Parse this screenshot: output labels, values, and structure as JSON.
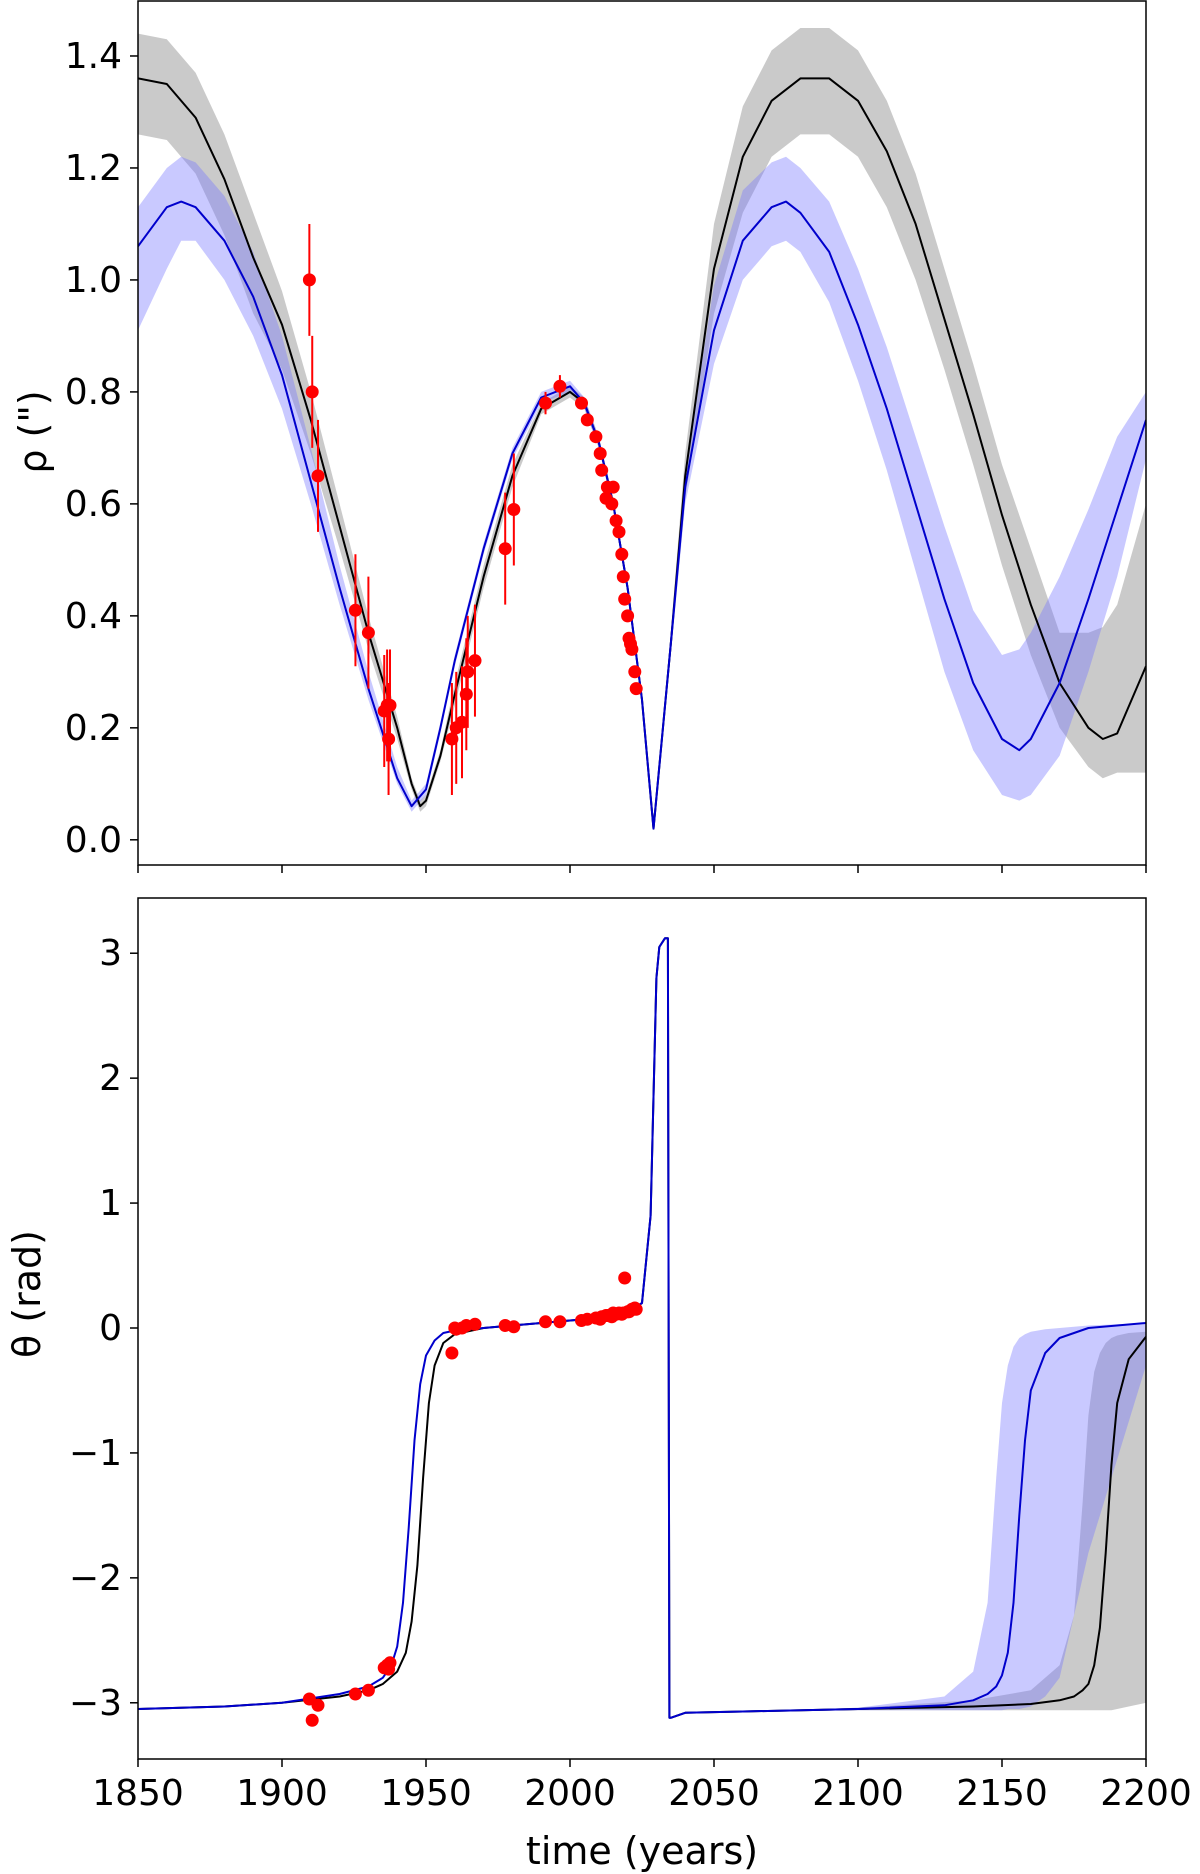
{
  "chart_data": [
    {
      "type": "line",
      "title": "",
      "xlabel": "",
      "ylabel": "ρ (\")",
      "xlim": [
        1850,
        2200
      ],
      "ylim": [
        -0.045,
        1.5
      ],
      "yticks": [
        "0.0",
        "0.2",
        "0.4",
        "0.6",
        "0.8",
        "1.0",
        "1.2",
        "1.4"
      ],
      "ytick_values": [
        0.0,
        0.2,
        0.4,
        0.6,
        0.8,
        1.0,
        1.2,
        1.4
      ],
      "xticks_unlabeled": [
        1850,
        1900,
        1950,
        2000,
        2050,
        2100,
        2150,
        2200
      ],
      "grid": false,
      "colors": {
        "black_model": "#000000",
        "blue_model": "#0000cc",
        "blue_band": "#c8c8f8",
        "gray_band": "#c8c8c8",
        "observations": "#ff0000"
      },
      "series": [
        {
          "color": "black",
          "x": [
            1850,
            1860,
            1870,
            1880,
            1890,
            1900,
            1910,
            1920,
            1930,
            1940,
            1945,
            1948,
            1950,
            1955,
            1960,
            1970,
            1980,
            1990,
            2000,
            2005,
            2010,
            2015,
            2020,
            2025,
            2029,
            2035,
            2040,
            2050,
            2060,
            2070,
            2080,
            2090,
            2100,
            2110,
            2120,
            2130,
            2140,
            2150,
            2160,
            2170,
            2180,
            2185,
            2190,
            2200
          ],
          "y": [
            1.36,
            1.35,
            1.29,
            1.18,
            1.04,
            0.92,
            0.75,
            0.56,
            0.37,
            0.2,
            0.1,
            0.06,
            0.07,
            0.15,
            0.26,
            0.47,
            0.65,
            0.77,
            0.8,
            0.78,
            0.71,
            0.6,
            0.45,
            0.25,
            0.02,
            0.35,
            0.65,
            1.02,
            1.22,
            1.32,
            1.36,
            1.36,
            1.32,
            1.23,
            1.1,
            0.93,
            0.76,
            0.58,
            0.42,
            0.28,
            0.2,
            0.18,
            0.19,
            0.31
          ],
          "band_lower": [
            1.26,
            1.25,
            1.19,
            1.08,
            0.94,
            0.84,
            0.69,
            0.52,
            0.34,
            0.18,
            0.09,
            0.05,
            0.06,
            0.14,
            0.24,
            0.45,
            0.63,
            0.76,
            0.79,
            0.77,
            0.7,
            0.59,
            0.44,
            0.24,
            0.02,
            0.33,
            0.61,
            0.94,
            1.12,
            1.22,
            1.26,
            1.26,
            1.22,
            1.13,
            1.0,
            0.84,
            0.67,
            0.49,
            0.33,
            0.2,
            0.13,
            0.11,
            0.12,
            0.12
          ],
          "band_upper": [
            1.44,
            1.43,
            1.37,
            1.26,
            1.12,
            0.98,
            0.8,
            0.6,
            0.4,
            0.22,
            0.11,
            0.07,
            0.08,
            0.16,
            0.28,
            0.49,
            0.67,
            0.78,
            0.81,
            0.79,
            0.72,
            0.61,
            0.46,
            0.26,
            0.03,
            0.37,
            0.69,
            1.1,
            1.31,
            1.41,
            1.45,
            1.45,
            1.41,
            1.32,
            1.19,
            1.02,
            0.85,
            0.67,
            0.52,
            0.37,
            0.37,
            0.38,
            0.42,
            0.6
          ]
        },
        {
          "color": "blue",
          "x": [
            1850,
            1860,
            1865,
            1870,
            1880,
            1890,
            1900,
            1910,
            1920,
            1930,
            1940,
            1945,
            1950,
            1955,
            1960,
            1970,
            1980,
            1990,
            2000,
            2005,
            2010,
            2015,
            2020,
            2025,
            2029,
            2035,
            2040,
            2050,
            2060,
            2070,
            2075,
            2080,
            2090,
            2100,
            2110,
            2120,
            2130,
            2140,
            2150,
            2156,
            2160,
            2170,
            2180,
            2190,
            2200
          ],
          "y": [
            1.06,
            1.13,
            1.14,
            1.13,
            1.07,
            0.97,
            0.83,
            0.64,
            0.45,
            0.27,
            0.11,
            0.06,
            0.09,
            0.2,
            0.32,
            0.52,
            0.69,
            0.79,
            0.81,
            0.78,
            0.71,
            0.6,
            0.45,
            0.25,
            0.02,
            0.35,
            0.63,
            0.91,
            1.07,
            1.13,
            1.14,
            1.12,
            1.05,
            0.92,
            0.77,
            0.6,
            0.43,
            0.28,
            0.18,
            0.16,
            0.18,
            0.28,
            0.43,
            0.59,
            0.75
          ],
          "band_lower": [
            0.91,
            1.02,
            1.07,
            1.07,
            1.0,
            0.9,
            0.77,
            0.6,
            0.42,
            0.25,
            0.1,
            0.05,
            0.08,
            0.19,
            0.31,
            0.51,
            0.68,
            0.78,
            0.8,
            0.77,
            0.7,
            0.59,
            0.44,
            0.24,
            0.02,
            0.33,
            0.6,
            0.85,
            1.0,
            1.06,
            1.07,
            1.05,
            0.96,
            0.82,
            0.66,
            0.48,
            0.3,
            0.16,
            0.08,
            0.07,
            0.08,
            0.15,
            0.3,
            0.47,
            0.68
          ],
          "band_upper": [
            1.13,
            1.2,
            1.22,
            1.21,
            1.15,
            1.05,
            0.9,
            0.7,
            0.49,
            0.3,
            0.13,
            0.07,
            0.1,
            0.21,
            0.33,
            0.53,
            0.7,
            0.8,
            0.82,
            0.79,
            0.72,
            0.61,
            0.46,
            0.26,
            0.03,
            0.37,
            0.66,
            0.99,
            1.16,
            1.21,
            1.22,
            1.2,
            1.14,
            1.02,
            0.88,
            0.72,
            0.56,
            0.41,
            0.33,
            0.34,
            0.37,
            0.47,
            0.59,
            0.72,
            0.8
          ]
        }
      ],
      "observations": {
        "x": [
          1909.5,
          1910.5,
          1912.5,
          1925.5,
          1930,
          1935.5,
          1936.5,
          1937.5,
          1937,
          1959,
          1960.5,
          1962.5,
          1964,
          1964.5,
          1967,
          1977.5,
          1980.5,
          1991.5,
          1996.5,
          2004,
          2006,
          2009,
          2010.5,
          2011,
          2012.5,
          2013,
          2014.5,
          2015,
          2016,
          2017,
          2018,
          2018.5,
          2019,
          2020,
          2020.5,
          2021,
          2021.5,
          2022.5,
          2023
        ],
        "y": [
          1.0,
          0.8,
          0.65,
          0.41,
          0.37,
          0.23,
          0.24,
          0.24,
          0.18,
          0.18,
          0.2,
          0.21,
          0.26,
          0.3,
          0.32,
          0.52,
          0.59,
          0.78,
          0.81,
          0.78,
          0.75,
          0.72,
          0.69,
          0.66,
          0.61,
          0.63,
          0.6,
          0.63,
          0.57,
          0.55,
          0.51,
          0.47,
          0.43,
          0.4,
          0.36,
          0.35,
          0.34,
          0.3,
          0.27
        ],
        "err": [
          0.1,
          0.1,
          0.1,
          0.1,
          0.1,
          0.1,
          0.1,
          0.1,
          0.1,
          0.1,
          0.1,
          0.1,
          0.1,
          0.1,
          0.1,
          0.1,
          0.1,
          0.02,
          0.02,
          0.01,
          0.01,
          0.01,
          0.01,
          0.01,
          0.01,
          0.01,
          0.01,
          0.01,
          0.01,
          0.01,
          0.01,
          0.01,
          0.01,
          0.01,
          0.01,
          0.01,
          0.01,
          0.01,
          0.01
        ]
      }
    },
    {
      "type": "line",
      "title": "",
      "xlabel": "time (years)",
      "ylabel": "θ (rad)",
      "xlim": [
        1850,
        2200
      ],
      "ylim": [
        -3.45,
        3.45
      ],
      "yticks": [
        "−3",
        "−2",
        "−1",
        "0",
        "1",
        "2",
        "3"
      ],
      "ytick_values": [
        -3,
        -2,
        -1,
        0,
        1,
        2,
        3
      ],
      "xticks": [
        "1850",
        "1900",
        "1950",
        "2000",
        "2050",
        "2100",
        "2150",
        "2200"
      ],
      "xtick_values": [
        1850,
        1900,
        1950,
        2000,
        2050,
        2100,
        2150,
        2200
      ],
      "grid": false,
      "series": [
        {
          "color": "black",
          "x": [
            1850,
            1880,
            1900,
            1920,
            1930,
            1935,
            1940,
            1943,
            1945,
            1947,
            1949,
            1951,
            1953,
            1956,
            1960,
            1970,
            1990,
            2010,
            2020,
            2025,
            2028,
            2030,
            2031,
            2033,
            2034,
            2034.5,
            2035,
            2040,
            2060,
            2100,
            2140,
            2160,
            2170,
            2175,
            2178,
            2180,
            2182,
            2184,
            2186,
            2188,
            2190,
            2194,
            2200
          ],
          "y": [
            -3.05,
            -3.03,
            -3.0,
            -2.95,
            -2.9,
            -2.85,
            -2.75,
            -2.6,
            -2.35,
            -1.9,
            -1.2,
            -0.6,
            -0.3,
            -0.12,
            -0.05,
            0.0,
            0.04,
            0.08,
            0.12,
            0.2,
            0.9,
            2.8,
            3.05,
            3.12,
            3.12,
            -3.12,
            -3.12,
            -3.08,
            -3.07,
            -3.05,
            -3.03,
            -3.01,
            -2.98,
            -2.95,
            -2.9,
            -2.85,
            -2.7,
            -2.4,
            -1.8,
            -1.1,
            -0.6,
            -0.25,
            -0.07
          ],
          "band_lower": [
            -3.05,
            -3.03,
            -3.0,
            -2.95,
            -2.9,
            -2.85,
            -2.75,
            -2.6,
            -2.35,
            -1.9,
            -1.2,
            -0.6,
            -0.3,
            -0.12,
            -0.05,
            0.0,
            0.04,
            0.08,
            0.12,
            0.2,
            0.9,
            2.8,
            3.05,
            3.12,
            3.12,
            -3.12,
            -3.12,
            -3.08,
            -3.07,
            -3.06,
            -3.06,
            -3.06,
            -3.06,
            -3.06,
            -3.06,
            -3.06,
            -3.06,
            -3.06,
            -3.06,
            -3.06,
            -3.05,
            -3.03,
            -3.0
          ],
          "band_upper": [
            -3.05,
            -3.03,
            -3.0,
            -2.95,
            -2.9,
            -2.85,
            -2.75,
            -2.6,
            -2.35,
            -1.9,
            -1.2,
            -0.6,
            -0.3,
            -0.12,
            -0.05,
            0.0,
            0.04,
            0.08,
            0.12,
            0.2,
            0.9,
            2.8,
            3.05,
            3.12,
            3.12,
            -3.12,
            -3.12,
            -3.08,
            -3.07,
            -3.04,
            -2.98,
            -2.9,
            -2.7,
            -2.3,
            -1.4,
            -0.7,
            -0.35,
            -0.2,
            -0.12,
            -0.08,
            -0.06,
            -0.04,
            -0.03
          ]
        },
        {
          "color": "blue",
          "x": [
            1850,
            1880,
            1900,
            1920,
            1930,
            1935,
            1938,
            1940,
            1942,
            1944,
            1946,
            1948,
            1950,
            1953,
            1956,
            1960,
            1970,
            1990,
            2010,
            2020,
            2025,
            2028,
            2030,
            2031,
            2033,
            2034,
            2034.5,
            2035,
            2040,
            2060,
            2100,
            2130,
            2140,
            2145,
            2148,
            2150,
            2152,
            2154,
            2156,
            2158,
            2160,
            2165,
            2170,
            2180,
            2200
          ],
          "y": [
            -3.05,
            -3.03,
            -3.0,
            -2.93,
            -2.87,
            -2.8,
            -2.7,
            -2.55,
            -2.2,
            -1.6,
            -0.9,
            -0.45,
            -0.22,
            -0.1,
            -0.04,
            -0.02,
            0.0,
            0.04,
            0.08,
            0.12,
            0.2,
            0.9,
            2.8,
            3.05,
            3.12,
            3.12,
            -3.12,
            -3.12,
            -3.08,
            -3.07,
            -3.05,
            -3.02,
            -2.98,
            -2.93,
            -2.87,
            -2.78,
            -2.6,
            -2.2,
            -1.5,
            -0.9,
            -0.5,
            -0.2,
            -0.08,
            0.0,
            0.04
          ],
          "band_lower": [
            -3.05,
            -3.03,
            -3.0,
            -2.93,
            -2.87,
            -2.8,
            -2.7,
            -2.55,
            -2.2,
            -1.6,
            -0.9,
            -0.45,
            -0.22,
            -0.1,
            -0.04,
            -0.02,
            0.0,
            0.04,
            0.08,
            0.12,
            0.2,
            0.9,
            2.8,
            3.05,
            3.12,
            3.12,
            -3.12,
            -3.12,
            -3.08,
            -3.07,
            -3.06,
            -3.06,
            -3.06,
            -3.06,
            -3.06,
            -3.06,
            -3.05,
            -3.05,
            -3.05,
            -3.04,
            -3.03,
            -2.95,
            -2.8,
            -1.8,
            -0.3
          ],
          "band_upper": [
            -3.05,
            -3.03,
            -3.0,
            -2.93,
            -2.87,
            -2.8,
            -2.7,
            -2.55,
            -2.2,
            -1.6,
            -0.9,
            -0.45,
            -0.22,
            -0.1,
            -0.04,
            -0.02,
            0.0,
            0.04,
            0.08,
            0.12,
            0.2,
            0.9,
            2.8,
            3.05,
            3.12,
            3.12,
            -3.12,
            -3.12,
            -3.08,
            -3.07,
            -3.04,
            -2.95,
            -2.75,
            -2.2,
            -1.2,
            -0.6,
            -0.3,
            -0.15,
            -0.08,
            -0.05,
            -0.03,
            -0.01,
            0.0,
            0.02,
            0.04
          ]
        }
      ],
      "observations": {
        "x": [
          1909.5,
          1910.5,
          1912.5,
          1925.5,
          1930,
          1935.5,
          1936.5,
          1937.5,
          1937,
          1959,
          1960,
          1960.5,
          1962.5,
          1964,
          1967,
          1977.5,
          1980.5,
          1991.5,
          1996.5,
          2004,
          2006,
          2009,
          2010.5,
          2011,
          2012.5,
          2013,
          2014.5,
          2015,
          2016,
          2017,
          2018,
          2018.5,
          2019,
          2020,
          2020.5,
          2021,
          2021.5,
          2022.5,
          2023
        ],
        "y": [
          -2.97,
          -3.14,
          -3.02,
          -2.93,
          -2.9,
          -2.72,
          -2.7,
          -2.68,
          -2.73,
          -0.2,
          0.0,
          -0.01,
          0.0,
          0.02,
          0.03,
          0.02,
          0.01,
          0.05,
          0.05,
          0.06,
          0.07,
          0.08,
          0.07,
          0.09,
          0.1,
          0.1,
          0.09,
          0.12,
          0.11,
          0.12,
          0.11,
          0.12,
          0.4,
          0.13,
          0.13,
          0.14,
          0.15,
          0.16,
          0.15
        ]
      }
    }
  ]
}
